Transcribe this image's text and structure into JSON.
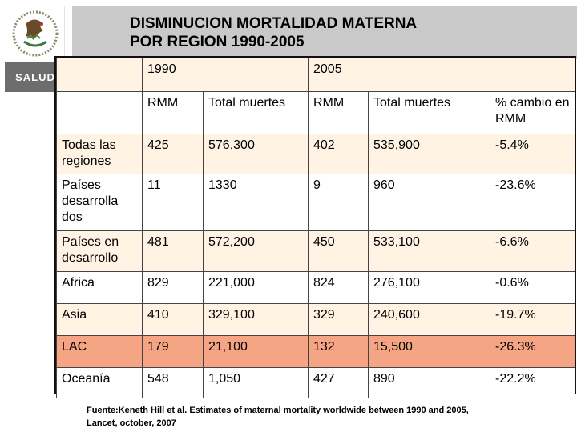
{
  "title": {
    "line1": "DISMINUCION MORTALIDAD MATERNA",
    "line2": "POR REGION 1990-2005"
  },
  "logo": {
    "icon": "coat-of-arms-icon",
    "label": "SALUD"
  },
  "table": {
    "years": [
      "1990",
      "2005"
    ],
    "columns": [
      "RMM",
      "Total muertes",
      "RMM",
      "Total muertes",
      "% cambio en RMM"
    ],
    "rows": [
      {
        "region": "Todas las regiones",
        "rmm1990": "425",
        "deaths1990": "576,300",
        "rmm2005": "402",
        "deaths2005": "535,900",
        "change": "-5.4%"
      },
      {
        "region": "Países desarrolla dos",
        "rmm1990": "11",
        "deaths1990": "1330",
        "rmm2005": "9",
        "deaths2005": "960",
        "change": "-23.6%"
      },
      {
        "region": "Países en desarrollo",
        "rmm1990": "481",
        "deaths1990": "572,200",
        "rmm2005": "450",
        "deaths2005": "533,100",
        "change": "-6.6%"
      },
      {
        "region": "Africa",
        "rmm1990": "829",
        "deaths1990": "221,000",
        "rmm2005": "824",
        "deaths2005": "276,100",
        "change": "-0.6%"
      },
      {
        "region": "Asia",
        "rmm1990": "410",
        "deaths1990": "329,100",
        "rmm2005": "329",
        "deaths2005": "240,600",
        "change": "-19.7%"
      },
      {
        "region": "LAC",
        "rmm1990": "179",
        "deaths1990": "21,100",
        "rmm2005": "132",
        "deaths2005": "15,500",
        "change": "-26.3%"
      },
      {
        "region": "Oceanía",
        "rmm1990": "548",
        "deaths1990": "1,050",
        "rmm2005": "427",
        "deaths2005": "890",
        "change": "-22.2%"
      }
    ]
  },
  "footnote": {
    "line1": "Fuente:Keneth Hill et al. Estimates of maternal mortality worldwide between 1990 and 2005,",
    "line2": "Lancet, october, 2007"
  },
  "colors": {
    "header_band": "#c9c9c9",
    "row_tint": "#fff4e3",
    "highlight": "#f5a584",
    "salud_box": "#6d6d6d"
  }
}
